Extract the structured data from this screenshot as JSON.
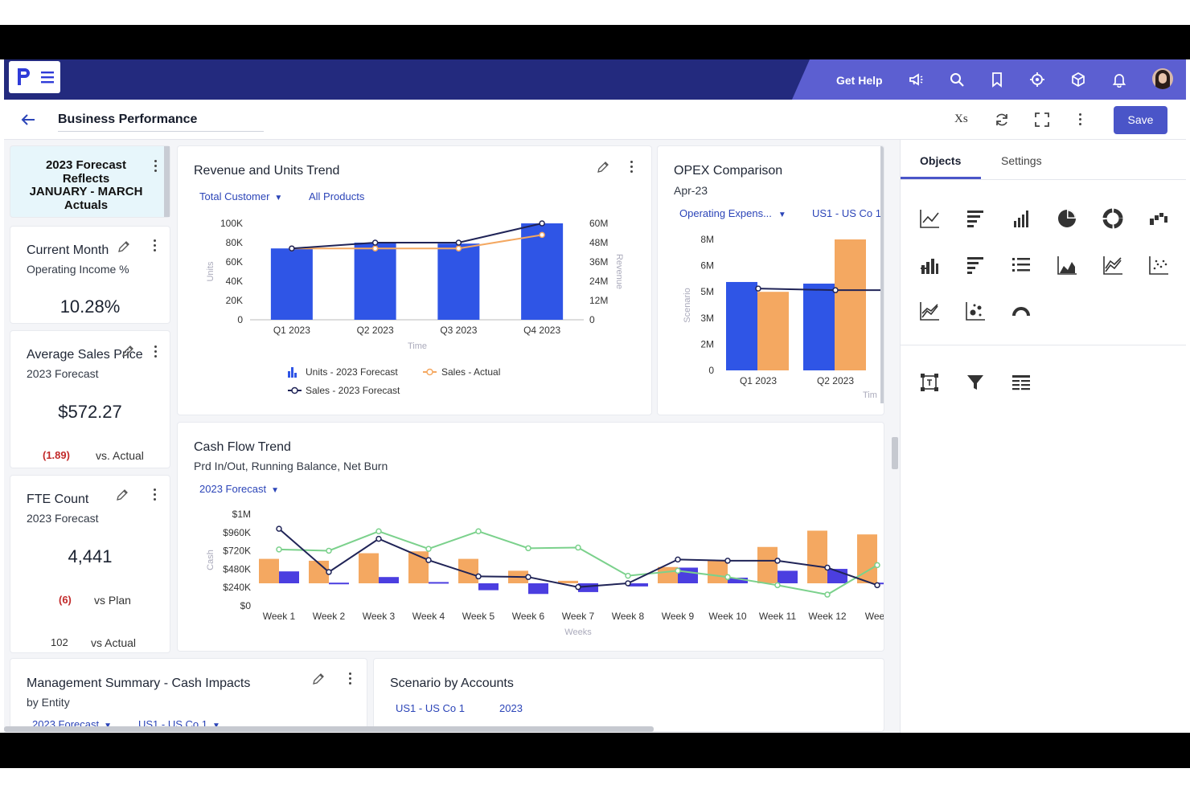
{
  "header": {
    "get_help": "Get Help"
  },
  "titlebar": {
    "title": "Business Performance",
    "save": "Save",
    "xs": "Xs"
  },
  "panel": {
    "tabs": [
      "Objects",
      "Settings"
    ]
  },
  "kpis": {
    "banner": {
      "line1": "2023 Forecast",
      "line2": "Reflects",
      "line3": "JANUARY - MARCH",
      "line4": "Actuals"
    },
    "current_month": {
      "title": "Current Month",
      "subtitle": "Operating Income %",
      "value": "10.28%"
    },
    "avg_price": {
      "title": "Average Sales Price",
      "subtitle": "2023 Forecast",
      "value": "$572.27",
      "delta": "(1.89)",
      "delta_label": "vs. Actual"
    },
    "fte": {
      "title": "FTE Count",
      "subtitle": "2023 Forecast",
      "value": "4,441",
      "delta": "(6)",
      "delta_label": "vs Plan",
      "delta2": "102",
      "delta2_label": "vs Actual"
    }
  },
  "revenue_card": {
    "title": "Revenue and Units Trend",
    "filter1": "Total Customer",
    "filter2": "All Products",
    "xaxis": "Time",
    "yleft": "Units",
    "yright": "Revenue",
    "legend": [
      "Units - 2023 Forecast",
      "Sales - Actual",
      "Sales - 2023 Forecast"
    ]
  },
  "opex_card": {
    "title": "OPEX Comparison",
    "subtitle": "Apr-23",
    "filter1": "Operating Expens...",
    "filter2": "US1 - US Co 1",
    "yaxis": "Scenario",
    "xaxis": "Tim"
  },
  "cash_card": {
    "title": "Cash Flow Trend",
    "subtitle": "Prd In/Out, Running Balance, Net Burn",
    "filter1": "2023 Forecast",
    "yaxis": "Cash",
    "xaxis": "Weeks"
  },
  "mgmt_card": {
    "title": "Management Summary - Cash Impacts",
    "subtitle": "by Entity",
    "filter1": "2023 Forecast",
    "filter2": "US1 - US Co 1"
  },
  "scenario_card": {
    "title": "Scenario by Accounts",
    "filter1": "US1 - US Co 1",
    "filter2": "2023"
  },
  "colors": {
    "navy": "#232a7e",
    "purple": "#5c5fd1",
    "bar_blue": "#2f55e6",
    "orange": "#f4a861",
    "green": "#7bd18c",
    "line_navy": "#202457",
    "violet": "#4b3ee0"
  },
  "chart_data": [
    {
      "type": "bar",
      "title": "Revenue and Units Trend",
      "categories": [
        "Q1 2023",
        "Q2 2023",
        "Q3 2023",
        "Q4 2023"
      ],
      "yticks_left": [
        "100K",
        "80K",
        "60K",
        "40K",
        "20K",
        "0"
      ],
      "yticks_right": [
        "60M",
        "48M",
        "36M",
        "24M",
        "12M",
        "0"
      ],
      "ylim": [
        0,
        100000
      ],
      "y2lim": [
        0,
        60000000
      ],
      "xlabel": "Time",
      "ylabel": "Units",
      "y2label": "Revenue",
      "series": [
        {
          "name": "Units - 2023 Forecast",
          "type": "bar",
          "values": [
            74000,
            80000,
            79000,
            100000
          ]
        },
        {
          "name": "Sales - Actual",
          "type": "line",
          "values": [
            44400000,
            44400000,
            44400000,
            52800000
          ]
        },
        {
          "name": "Sales - 2023 Forecast",
          "type": "line",
          "values": [
            44400000,
            48000000,
            48000000,
            60000000
          ]
        }
      ]
    },
    {
      "type": "bar",
      "title": "OPEX Comparison",
      "categories": [
        "Q1 2023",
        "Q2 2023"
      ],
      "yticks": [
        "8M",
        "6M",
        "5M",
        "3M",
        "2M",
        "0"
      ],
      "ylabel": "Scenario",
      "series": [
        {
          "type": "bar",
          "values": [
            5.4,
            5.3
          ]
        },
        {
          "type": "bar",
          "values": [
            4.8,
            8.0
          ]
        },
        {
          "type": "line",
          "values": [
            5.0,
            4.9
          ]
        }
      ]
    },
    {
      "type": "bar",
      "title": "Cash Flow Trend",
      "categories": [
        "Week 1",
        "Week 2",
        "Week 3",
        "Week 4",
        "Week 5",
        "Week 6",
        "Week 7",
        "Week 8",
        "Week 9",
        "Week 10",
        "Week 11",
        "Week 12",
        "Week"
      ],
      "yticks": [
        "$1M",
        "$960K",
        "$720K",
        "$480K",
        "$240K",
        "$0"
      ],
      "xlabel": "Weeks",
      "ylabel": "Cash",
      "series": [
        {
          "type": "bar",
          "values": [
            390,
            360,
            480,
            510,
            390,
            200,
            40,
            0,
            260,
            360,
            580,
            840,
            780
          ]
        },
        {
          "type": "bar",
          "values": [
            190,
            10,
            100,
            20,
            -110,
            -170,
            -140,
            -50,
            250,
            90,
            200,
            230,
            10
          ]
        },
        {
          "type": "line",
          "values": [
            870,
            180,
            710,
            370,
            110,
            100,
            -60,
            0,
            380,
            360,
            360,
            250,
            -30
          ]
        },
        {
          "type": "line",
          "values": [
            540,
            520,
            830,
            550,
            830,
            560,
            570,
            120,
            200,
            100,
            -30,
            -180,
            290
          ]
        }
      ]
    }
  ]
}
